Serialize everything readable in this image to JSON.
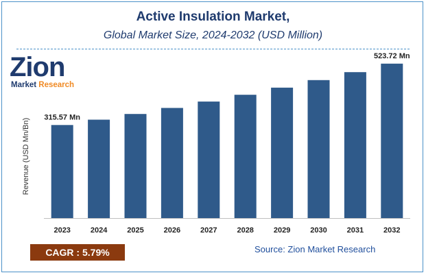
{
  "header": {
    "title": "Active Insulation Market,",
    "subtitle": "Global Market Size, 2024-2032 (USD Million)"
  },
  "logo": {
    "word": "Zion",
    "sub_main": "Market ",
    "sub_accent": "Research"
  },
  "footer": {
    "cagr_label": "CAGR :",
    "cagr_value": "5.79%",
    "source": "Source: Zion Market Research"
  },
  "colors": {
    "bar": "#2f5a8a",
    "title": "#1f3b6e",
    "cagr_bg": "#8b3a0f",
    "accent": "#f08a24"
  },
  "chart_data": {
    "type": "bar",
    "title": "Active Insulation Market,",
    "subtitle": "Global Market Size, 2024-2032 (USD Million)",
    "xlabel": "",
    "ylabel": "Revenue (USD Mn/Bn)",
    "categories": [
      "2023",
      "2024",
      "2025",
      "2026",
      "2027",
      "2028",
      "2029",
      "2030",
      "2031",
      "2032"
    ],
    "values": [
      315.57,
      333.8,
      353.1,
      373.6,
      395.2,
      418.1,
      442.3,
      467.9,
      495.0,
      523.72
    ],
    "data_labels": [
      {
        "index": 0,
        "text": "315.57 Mn"
      },
      {
        "index": 9,
        "text": "523.72 Mn"
      }
    ],
    "ylim": [
      0,
      600
    ],
    "grid": false,
    "legend": "none"
  }
}
